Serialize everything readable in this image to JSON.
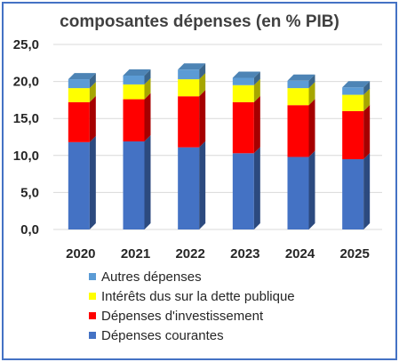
{
  "chart_data": {
    "type": "bar",
    "stacked": true,
    "title": "composantes dépenses (en % PIB)",
    "categories": [
      "2020",
      "2021",
      "2022",
      "2023",
      "2024",
      "2025"
    ],
    "series": [
      {
        "name": "Dépenses courantes",
        "color": "#4472c4",
        "values": [
          11.8,
          11.9,
          11.1,
          10.3,
          9.8,
          9.5
        ]
      },
      {
        "name": "Dépenses d'investissement",
        "color": "#ff0000",
        "values": [
          5.4,
          5.7,
          6.9,
          6.9,
          7.0,
          6.5
        ]
      },
      {
        "name": "Intérêts dus sur la dette publique",
        "color": "#ffff00",
        "values": [
          1.9,
          2.0,
          2.3,
          2.3,
          2.3,
          2.2
        ]
      },
      {
        "name": "Autres dépenses",
        "color": "#5b9bd5",
        "values": [
          1.2,
          1.2,
          1.3,
          1.0,
          1.0,
          1.0
        ]
      }
    ],
    "y_ticks": [
      "0,0",
      "5,0",
      "10,0",
      "15,0",
      "20,0",
      "25,0"
    ],
    "ylim": [
      0,
      25
    ],
    "grid": true,
    "legend_position": "bottom"
  }
}
